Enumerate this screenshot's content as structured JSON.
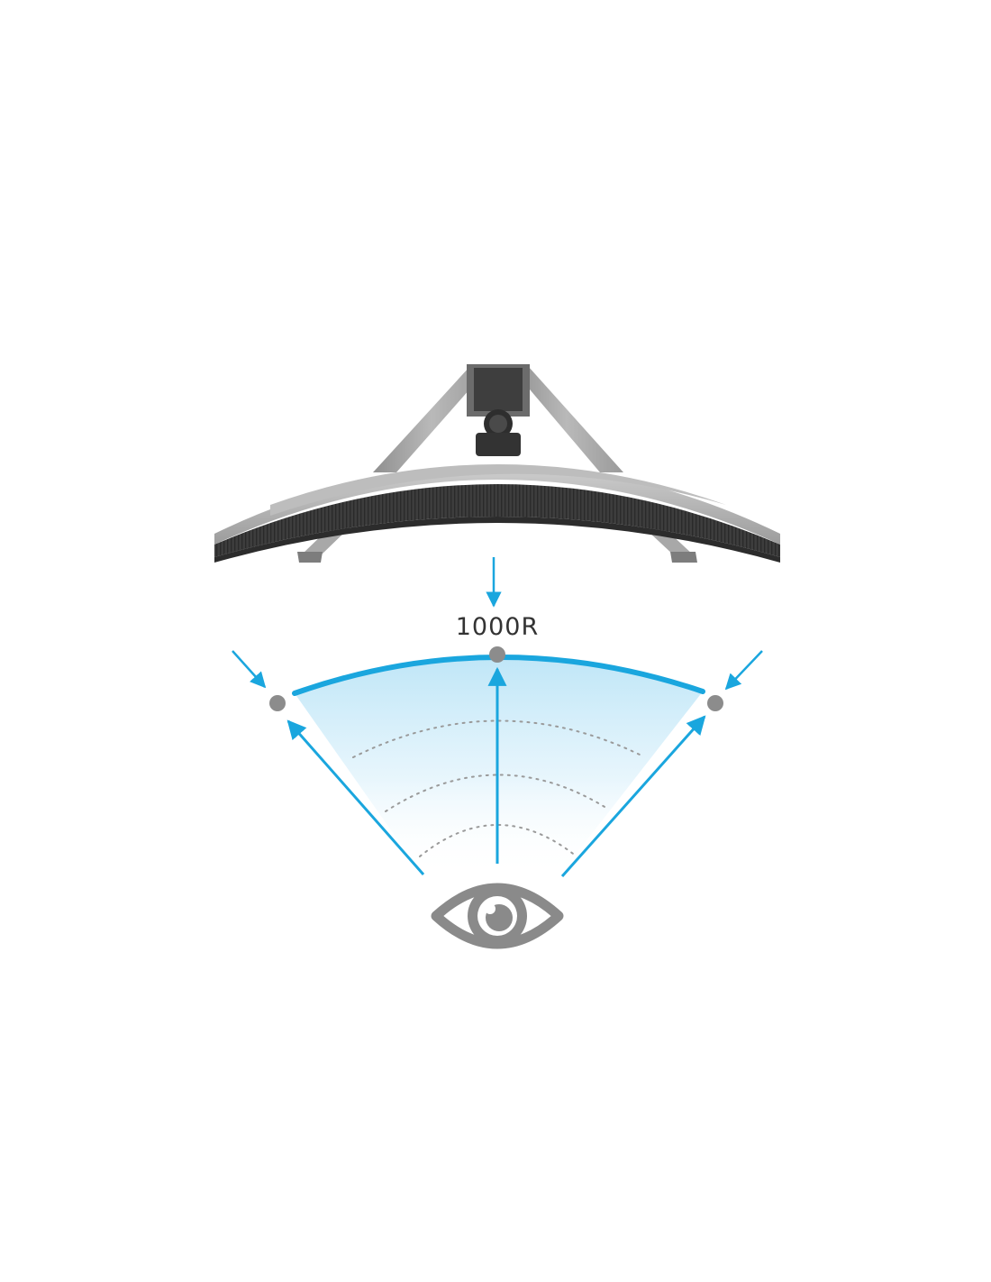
{
  "curvature": {
    "label": "1000R"
  },
  "colors": {
    "accent": "#1aa6de",
    "accent_light": "#bfe6f7",
    "marker_gray": "#8c8c8c",
    "eye_gray": "#8a8a8a",
    "monitor_dark": "#3a3a3a",
    "monitor_silver": "#a9a9a9",
    "label_text": "#333333"
  },
  "icons": {
    "viewer": "eye-icon",
    "monitor": "curved-monitor-top-view"
  }
}
